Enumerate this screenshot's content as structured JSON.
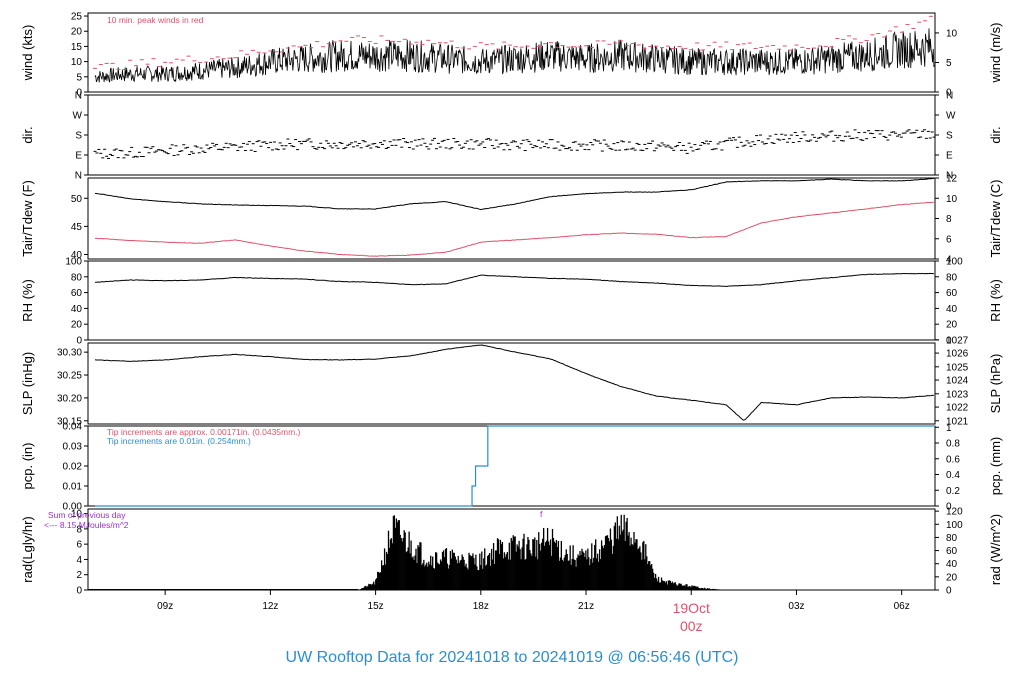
{
  "title": "UW Rooftop Data for 20241018  to  20241019 @ 06:56:46  (UTC)",
  "colors": {
    "primary": "#000000",
    "peak": "#df536b",
    "dewpoint": "#df536b",
    "precip": "#2a8fd0",
    "radiation_note": "#9b30d9",
    "date_marker": "#df536b",
    "title": "#2a8fd0"
  },
  "x_axis": {
    "ticks": [
      "09z",
      "12z",
      "15z",
      "18z",
      "21z",
      "03z",
      "06z"
    ],
    "day_marker": {
      "day": "19Oct",
      "hour": "00z"
    }
  },
  "chart_data": [
    {
      "id": "wind",
      "type": "line",
      "left_label": "wind (kts)",
      "right_label": "wind (m/s)",
      "left_ticks": [
        "0",
        "5",
        "10",
        "15",
        "20",
        "25"
      ],
      "right_ticks": [
        "0",
        "5",
        "10"
      ],
      "ylim": [
        0,
        26
      ],
      "annotation": "10 min. peak winds in red",
      "x_hours": [
        7.0,
        8.0,
        9.0,
        10.0,
        11.0,
        12.0,
        13.0,
        14.0,
        15.0,
        16.0,
        17.0,
        18.0,
        19.0,
        20.0,
        21.0,
        22.0,
        23.0,
        24.0,
        25.0,
        26.0,
        27.0,
        28.0,
        29.0,
        30.0,
        30.95
      ],
      "series": [
        {
          "values": [
            5,
            6,
            6,
            7,
            8,
            10,
            11,
            12,
            12,
            12,
            11,
            10,
            11,
            12,
            11,
            12,
            11,
            10,
            10,
            10,
            10,
            11,
            12,
            14,
            15
          ]
        },
        {
          "values": [
            8,
            9,
            10,
            11,
            12,
            14,
            15,
            17,
            17,
            17,
            16,
            15,
            15,
            16,
            15,
            16,
            15,
            15,
            15,
            15,
            15,
            16,
            18,
            21,
            24
          ]
        }
      ]
    },
    {
      "id": "dir",
      "type": "scatter",
      "left_label": "dir.",
      "right_label": "dir.",
      "left_ticks": [
        "N",
        "E",
        "S",
        "W",
        "N"
      ],
      "right_ticks": [
        "N",
        "E",
        "S",
        "W",
        "N"
      ],
      "ylim": [
        0,
        360
      ],
      "x_hours": [
        7.0,
        8.0,
        9.0,
        10.0,
        11.0,
        12.0,
        13.0,
        14.0,
        15.0,
        16.0,
        17.0,
        18.0,
        19.0,
        20.0,
        21.0,
        22.0,
        23.0,
        24.0,
        25.0,
        26.0,
        27.0,
        28.0,
        29.0,
        30.0,
        30.95
      ],
      "series": [
        {
          "values": [
            95,
            100,
            110,
            120,
            125,
            135,
            140,
            140,
            145,
            140,
            140,
            140,
            135,
            135,
            135,
            130,
            130,
            120,
            140,
            160,
            170,
            175,
            180,
            180,
            185
          ]
        }
      ]
    },
    {
      "id": "temp",
      "type": "line",
      "left_label": "Tair/Tdew (F)",
      "right_label": "Tair/Tdew (C)",
      "left_ticks": [
        "40",
        "45",
        "50"
      ],
      "right_ticks": [
        "4",
        "6",
        "8",
        "10",
        "12"
      ],
      "ylim": [
        39.2,
        53.6
      ],
      "x_hours": [
        7.0,
        8.0,
        9.0,
        10.0,
        11.0,
        12.0,
        13.0,
        14.0,
        15.0,
        16.0,
        17.0,
        18.0,
        19.0,
        20.0,
        21.0,
        22.0,
        23.0,
        24.0,
        25.0,
        26.0,
        27.0,
        28.0,
        29.0,
        30.0,
        30.95
      ],
      "series": [
        {
          "name": "Tair",
          "values": [
            50.9,
            49.9,
            49.4,
            49.0,
            48.8,
            48.7,
            48.6,
            48.1,
            48.1,
            49.0,
            49.4,
            48.0,
            49.0,
            50.3,
            50.8,
            51.1,
            51.1,
            51.5,
            52.9,
            53.1,
            53.1,
            53.4,
            53.1,
            53.1,
            53.5
          ]
        },
        {
          "name": "Tdew",
          "values": [
            42.9,
            42.5,
            42.2,
            42.0,
            42.6,
            41.5,
            40.6,
            40.0,
            39.7,
            39.9,
            40.4,
            42.2,
            42.6,
            43.0,
            43.5,
            43.8,
            43.6,
            43.0,
            43.2,
            45.6,
            46.7,
            47.4,
            48.1,
            48.9,
            49.3
          ]
        }
      ]
    },
    {
      "id": "rh",
      "type": "line",
      "left_label": "RH (%)",
      "right_label": "RH (%)",
      "left_ticks": [
        "0",
        "20",
        "40",
        "60",
        "80",
        "100"
      ],
      "right_ticks": [
        "0",
        "20",
        "40",
        "60",
        "80",
        "100"
      ],
      "ylim": [
        0,
        100
      ],
      "x_hours": [
        7.0,
        8.0,
        9.0,
        10.0,
        11.0,
        12.0,
        13.0,
        14.0,
        15.0,
        16.0,
        17.0,
        18.0,
        19.0,
        20.0,
        21.0,
        22.0,
        23.0,
        24.0,
        25.0,
        26.0,
        27.0,
        28.0,
        29.0,
        30.0,
        30.95
      ],
      "series": [
        {
          "values": [
            73,
            76,
            75,
            76,
            79,
            78,
            77,
            74,
            73,
            70,
            71,
            82,
            80,
            78,
            77,
            74,
            72,
            69,
            68,
            70,
            75,
            79,
            83,
            84,
            84
          ]
        }
      ]
    },
    {
      "id": "slp",
      "type": "line",
      "left_label": "SLP (inHg)",
      "right_label": "SLP (hPa)",
      "left_ticks": [
        "30.15",
        "30.20",
        "30.25",
        "30.30"
      ],
      "right_ticks": [
        "1021",
        "1022",
        "1023",
        "1024",
        "1025",
        "1026",
        "1027"
      ],
      "ylim": [
        30.143,
        30.32
      ],
      "x_hours": [
        7.0,
        8.0,
        9.0,
        10.0,
        11.0,
        12.0,
        13.0,
        14.0,
        15.0,
        16.0,
        17.0,
        18.0,
        19.0,
        20.0,
        21.0,
        22.0,
        23.0,
        24.0,
        25.0,
        25.5,
        26.0,
        27.0,
        28.0,
        29.0,
        30.0,
        30.95
      ],
      "series": [
        {
          "values": [
            30.283,
            30.28,
            30.283,
            30.29,
            30.295,
            30.29,
            30.284,
            30.283,
            30.285,
            30.292,
            30.306,
            30.316,
            30.3,
            30.285,
            30.253,
            30.225,
            30.204,
            30.195,
            30.185,
            30.15,
            30.19,
            30.185,
            30.2,
            30.202,
            30.2,
            30.206
          ]
        }
      ]
    },
    {
      "id": "pcp",
      "type": "line",
      "left_label": "pcp. (in)",
      "right_label": "pcp. (mm)",
      "left_ticks": [
        "0.00",
        "0.01",
        "0.02",
        "0.03",
        "0.04"
      ],
      "right_ticks": [
        "0",
        "0.2",
        "0.4",
        "0.6",
        "0.8",
        "1"
      ],
      "ylim": [
        0,
        0.04
      ],
      "notes": [
        "Tip increments are approx. 0.00171in. (0.0435mm.)",
        "Tip increments are 0.01in. (0.254mm.)"
      ],
      "x_hours": [
        7.0,
        17.6,
        17.75,
        17.85,
        18.2,
        30.95
      ],
      "series": [
        {
          "values": [
            0,
            0,
            0.01,
            0.02,
            0.04,
            0.04
          ]
        }
      ]
    },
    {
      "id": "rad",
      "type": "area",
      "left_label": "rad(Lgly/hr)",
      "right_label": "rad (W/m^2)",
      "left_ticks": [
        "0",
        "2",
        "4",
        "6",
        "8",
        "10"
      ],
      "right_ticks": [
        "0",
        "20",
        "40",
        "60",
        "80",
        "100",
        "120"
      ],
      "ylim": [
        0,
        10.6
      ],
      "notes": [
        "Sum of previous day",
        "<--- 8.15 MJoules/m^2"
      ],
      "marker": "f",
      "x_hours": [
        14.5,
        15.0,
        15.5,
        16.0,
        16.5,
        17.0,
        17.5,
        18.0,
        18.5,
        19.0,
        19.5,
        20.0,
        20.5,
        21.0,
        21.5,
        22.0,
        22.5,
        23.0,
        23.5,
        24.0,
        24.5,
        25.0
      ],
      "series": [
        {
          "values": [
            0,
            1.2,
            9.5,
            7.2,
            5.0,
            5.1,
            4.8,
            4.6,
            6.5,
            6.8,
            6.9,
            7.8,
            5.5,
            5.0,
            7.0,
            9.5,
            8.0,
            1.8,
            1.0,
            0.6,
            0.2,
            0
          ]
        }
      ]
    }
  ]
}
